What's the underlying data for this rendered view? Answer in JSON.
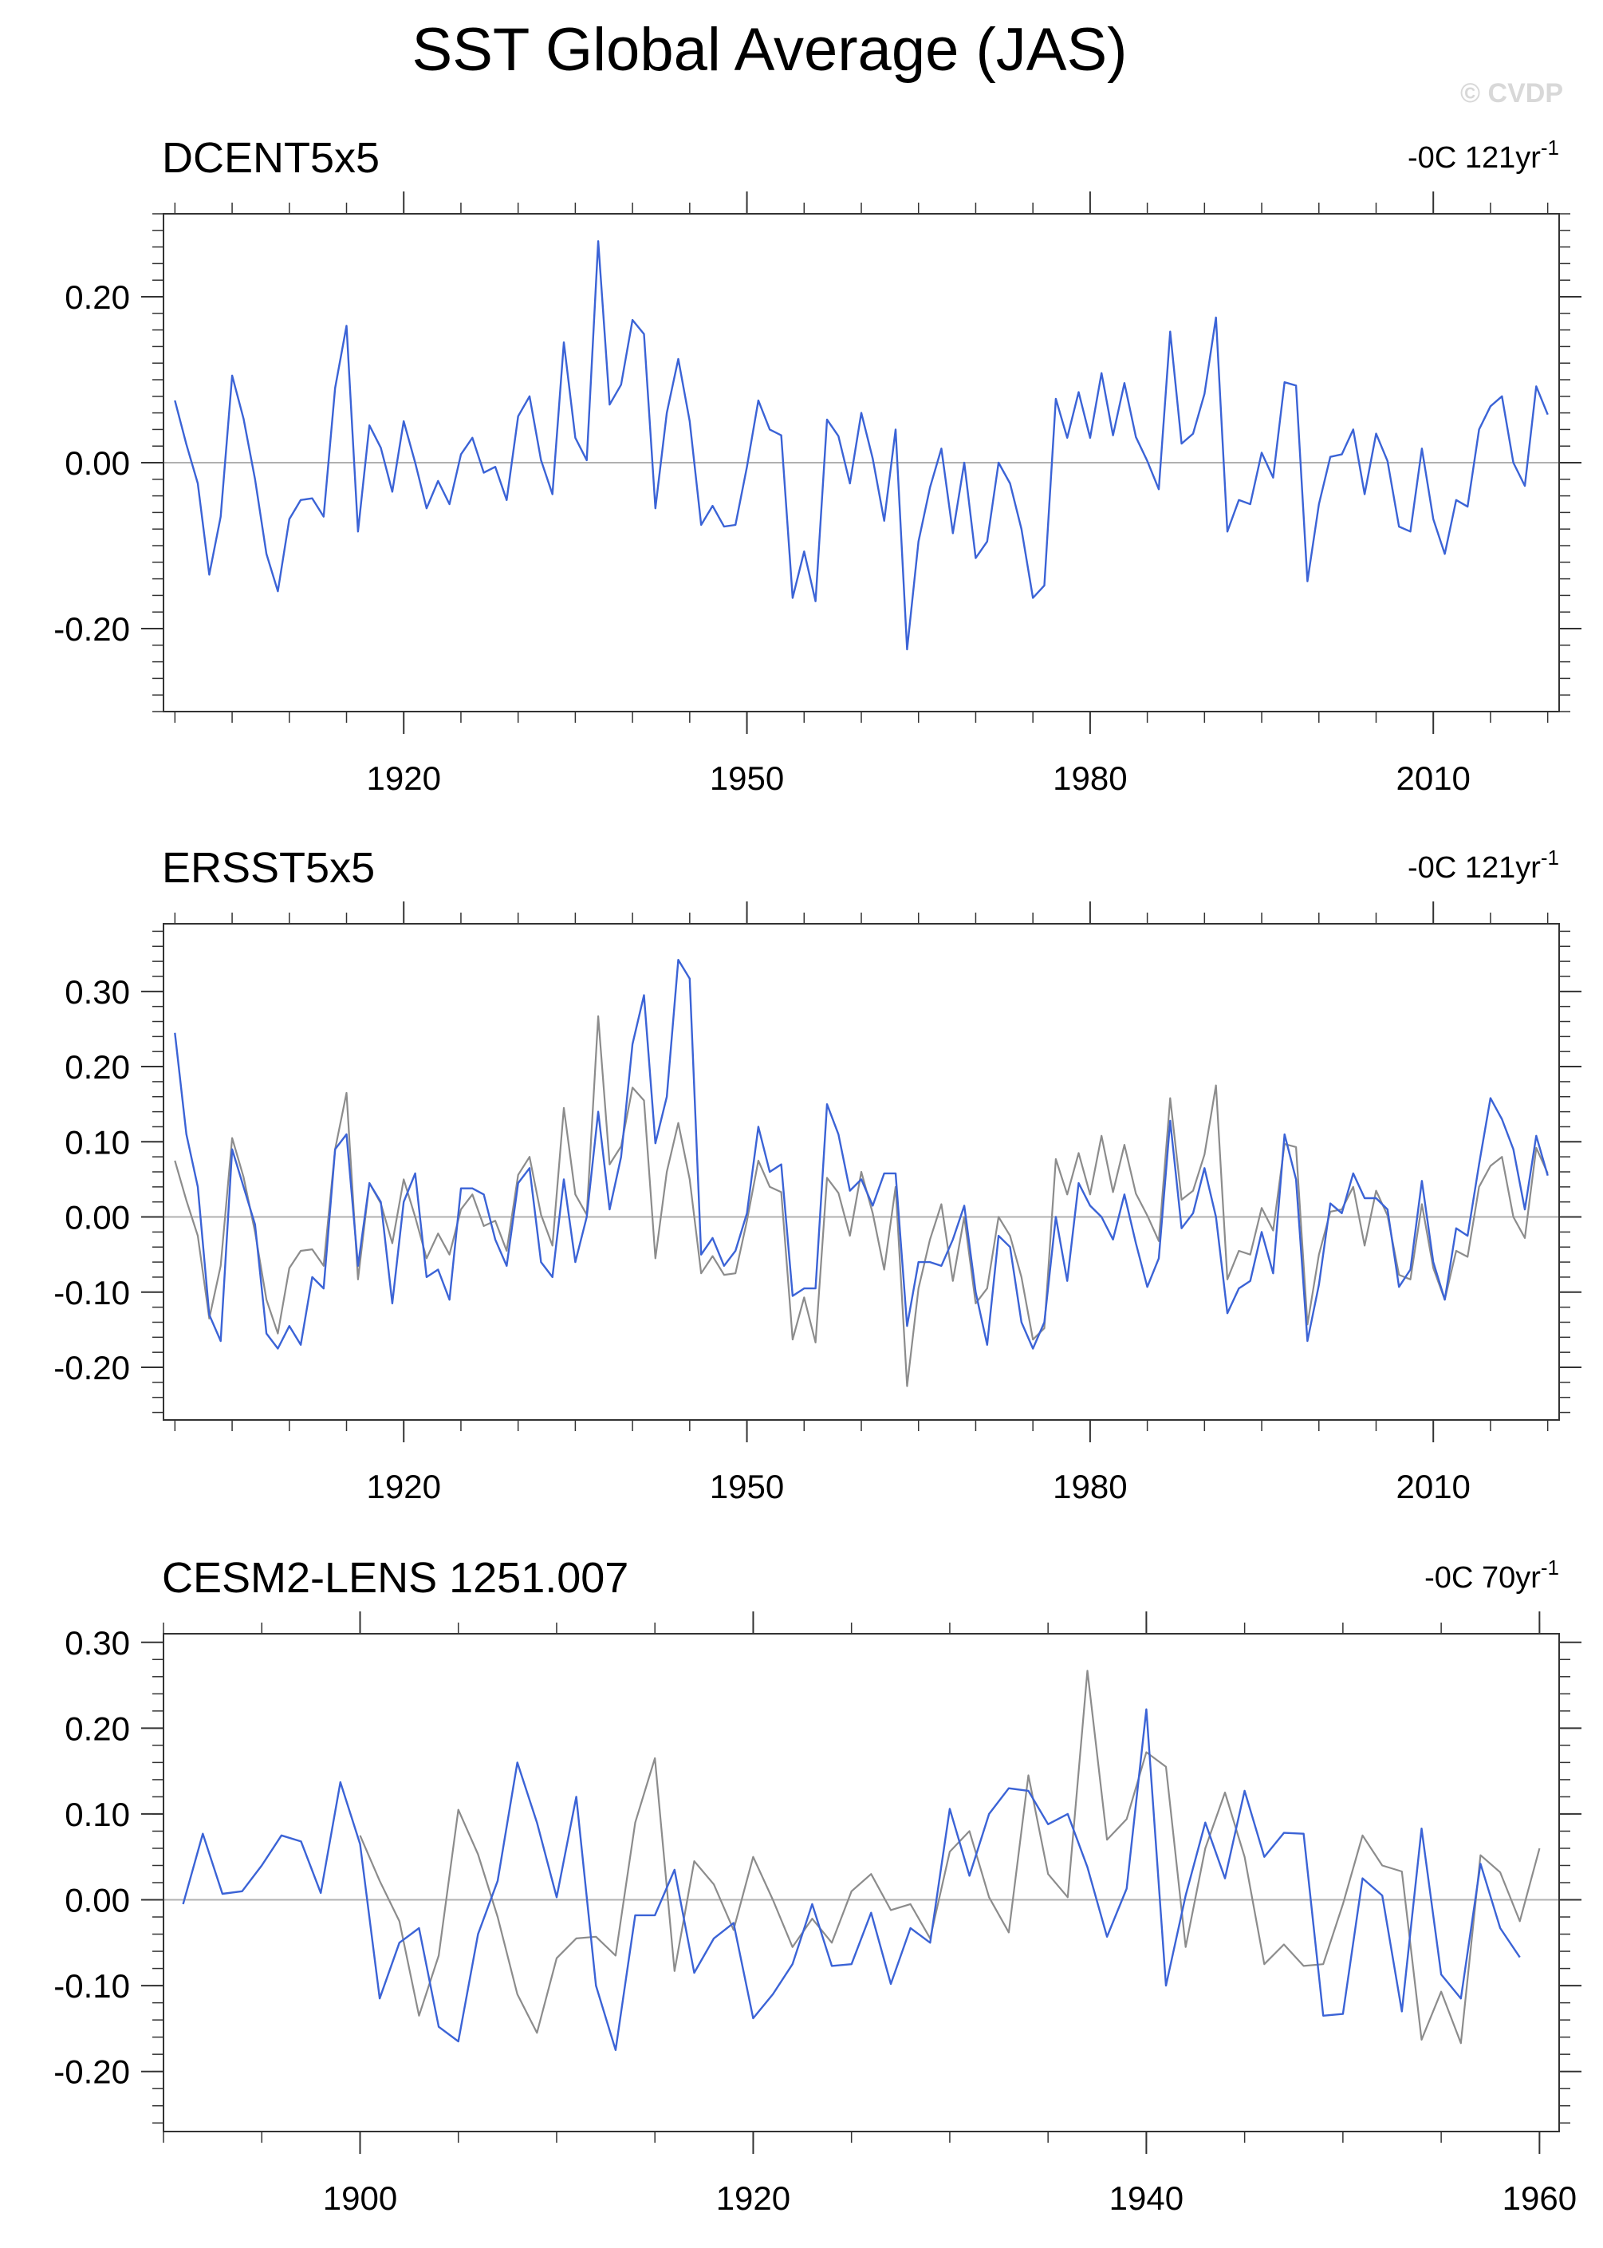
{
  "title": "SST Global Average (JAS)",
  "watermark": "© CVDP",
  "colors": {
    "primary_line": "#3b63d6",
    "reference_line": "#8c8c8c",
    "zero_line": "#b0b0b0",
    "axis": "#333333"
  },
  "chart_data": [
    {
      "type": "line",
      "title": "DCENT5x5",
      "trend_label": "-0C 121yr",
      "trend_superscript": "-1",
      "xlim": [
        1899,
        2021
      ],
      "ylim": [
        -0.3,
        0.3
      ],
      "yticks": [
        -0.2,
        0.0,
        0.2
      ],
      "ytick_labels": [
        "-0.20",
        "0.00",
        "0.20"
      ],
      "xticks": [
        1920,
        1950,
        1980,
        2010
      ],
      "xtick_labels": [
        "1920",
        "1950",
        "1980",
        "2010"
      ],
      "x_start": 1900,
      "series": [
        {
          "role": "primary",
          "values": [
            0.075,
            0.022,
            -0.025,
            -0.135,
            -0.065,
            0.105,
            0.053,
            -0.02,
            -0.11,
            -0.155,
            -0.068,
            -0.045,
            -0.043,
            -0.065,
            0.09,
            0.165,
            -0.083,
            0.045,
            0.018,
            -0.035,
            0.05,
            0.0,
            -0.055,
            -0.022,
            -0.05,
            0.01,
            0.03,
            -0.012,
            -0.005,
            -0.045,
            0.056,
            0.08,
            0.003,
            -0.038,
            0.145,
            0.03,
            0.003,
            0.267,
            0.07,
            0.094,
            0.172,
            0.155,
            -0.055,
            0.06,
            0.125,
            0.05,
            -0.075,
            -0.052,
            -0.077,
            -0.075,
            -0.005,
            0.075,
            0.04,
            0.033,
            -0.163,
            -0.107,
            -0.167,
            0.052,
            0.032,
            -0.025,
            0.06,
            0.005,
            -0.07,
            0.04,
            -0.225,
            -0.095,
            -0.03,
            0.017,
            -0.085,
            0.0,
            -0.115,
            -0.095,
            0.0,
            -0.025,
            -0.08,
            -0.163,
            -0.148,
            0.077,
            0.03,
            0.085,
            0.03,
            0.108,
            0.033,
            0.096,
            0.031,
            0.002,
            -0.032,
            0.158,
            0.023,
            0.035,
            0.083,
            0.175,
            -0.083,
            -0.045,
            -0.05,
            0.012,
            -0.018,
            0.097,
            0.093,
            -0.143,
            -0.05,
            0.007,
            0.01,
            0.04,
            -0.038,
            0.035,
            0.002,
            -0.077,
            -0.083,
            0.017,
            -0.068,
            -0.11,
            -0.045,
            -0.053,
            0.04,
            0.068,
            0.08,
            0.0,
            -0.028,
            0.092,
            0.058
          ]
        }
      ]
    },
    {
      "type": "line",
      "title": "ERSST5x5",
      "trend_label": "-0C 121yr",
      "trend_superscript": "-1",
      "xlim": [
        1899,
        2021
      ],
      "ylim": [
        -0.27,
        0.39
      ],
      "yticks": [
        -0.2,
        -0.1,
        0.0,
        0.1,
        0.2,
        0.3
      ],
      "ytick_labels": [
        "-0.20",
        "-0.10",
        "0.00",
        "0.10",
        "0.20",
        "0.30"
      ],
      "xticks": [
        1920,
        1950,
        1980,
        2010
      ],
      "xtick_labels": [
        "1920",
        "1950",
        "1980",
        "2010"
      ],
      "x_start": 1900,
      "series": [
        {
          "role": "reference",
          "values": [
            0.075,
            0.022,
            -0.025,
            -0.135,
            -0.065,
            0.105,
            0.053,
            -0.02,
            -0.11,
            -0.155,
            -0.068,
            -0.045,
            -0.043,
            -0.065,
            0.09,
            0.165,
            -0.083,
            0.045,
            0.018,
            -0.035,
            0.05,
            0.0,
            -0.055,
            -0.022,
            -0.05,
            0.01,
            0.03,
            -0.012,
            -0.005,
            -0.045,
            0.056,
            0.08,
            0.003,
            -0.038,
            0.145,
            0.03,
            0.003,
            0.267,
            0.07,
            0.094,
            0.172,
            0.155,
            -0.055,
            0.06,
            0.125,
            0.05,
            -0.075,
            -0.052,
            -0.077,
            -0.075,
            -0.005,
            0.075,
            0.04,
            0.033,
            -0.163,
            -0.107,
            -0.167,
            0.052,
            0.032,
            -0.025,
            0.06,
            0.005,
            -0.07,
            0.04,
            -0.225,
            -0.095,
            -0.03,
            0.017,
            -0.085,
            0.0,
            -0.115,
            -0.095,
            0.0,
            -0.025,
            -0.08,
            -0.163,
            -0.148,
            0.077,
            0.03,
            0.085,
            0.03,
            0.108,
            0.033,
            0.096,
            0.031,
            0.002,
            -0.032,
            0.158,
            0.023,
            0.035,
            0.083,
            0.175,
            -0.083,
            -0.045,
            -0.05,
            0.012,
            -0.018,
            0.097,
            0.093,
            -0.143,
            -0.05,
            0.007,
            0.01,
            0.04,
            -0.038,
            0.035,
            0.002,
            -0.077,
            -0.083,
            0.017,
            -0.068,
            -0.11,
            -0.045,
            -0.053,
            0.04,
            0.068,
            0.08,
            0.0,
            -0.028,
            0.092,
            0.058
          ]
        },
        {
          "role": "primary",
          "values": [
            0.245,
            0.11,
            0.04,
            -0.13,
            -0.165,
            0.09,
            0.04,
            -0.01,
            -0.155,
            -0.175,
            -0.145,
            -0.17,
            -0.08,
            -0.095,
            0.09,
            0.11,
            -0.065,
            0.045,
            0.02,
            -0.115,
            0.02,
            0.058,
            -0.08,
            -0.07,
            -0.11,
            0.038,
            0.038,
            0.03,
            -0.03,
            -0.065,
            0.045,
            0.065,
            -0.06,
            -0.08,
            0.05,
            -0.06,
            0.0,
            0.14,
            0.01,
            0.08,
            0.23,
            0.295,
            0.098,
            0.16,
            0.342,
            0.317,
            -0.05,
            -0.028,
            -0.065,
            -0.045,
            0.005,
            0.12,
            0.06,
            0.07,
            -0.105,
            -0.095,
            -0.095,
            0.15,
            0.11,
            0.035,
            0.05,
            0.015,
            0.058,
            0.058,
            -0.145,
            -0.06,
            -0.06,
            -0.065,
            -0.03,
            0.015,
            -0.1,
            -0.17,
            -0.025,
            -0.04,
            -0.14,
            -0.175,
            -0.14,
            0.0,
            -0.085,
            0.045,
            0.015,
            0.0,
            -0.03,
            0.03,
            -0.035,
            -0.093,
            -0.055,
            0.128,
            -0.015,
            0.005,
            0.065,
            0.0,
            -0.128,
            -0.095,
            -0.085,
            -0.02,
            -0.075,
            0.11,
            0.05,
            -0.165,
            -0.09,
            0.018,
            0.005,
            0.058,
            0.025,
            0.025,
            0.01,
            -0.093,
            -0.07,
            0.048,
            -0.06,
            -0.11,
            -0.015,
            -0.025,
            0.07,
            0.158,
            0.13,
            0.09,
            0.01,
            0.108,
            0.055
          ]
        }
      ]
    },
    {
      "type": "line",
      "title": "CESM2-LENS 1251.007",
      "trend_label": "-0C 70yr",
      "trend_superscript": "-1",
      "xlim": [
        1890,
        1961
      ],
      "ylim": [
        -0.27,
        0.31
      ],
      "yticks": [
        -0.2,
        -0.1,
        0.0,
        0.1,
        0.2,
        0.3
      ],
      "ytick_labels": [
        "-0.20",
        "-0.10",
        "0.00",
        "0.10",
        "0.20",
        "0.30"
      ],
      "xticks": [
        1900,
        1920,
        1940,
        1960
      ],
      "xtick_labels": [
        "1900",
        "1920",
        "1940",
        "1960"
      ],
      "series": [
        {
          "role": "reference",
          "x_start": 1900,
          "values": [
            0.075,
            0.022,
            -0.025,
            -0.135,
            -0.065,
            0.105,
            0.053,
            -0.02,
            -0.11,
            -0.155,
            -0.068,
            -0.045,
            -0.043,
            -0.065,
            0.09,
            0.165,
            -0.083,
            0.045,
            0.018,
            -0.035,
            0.05,
            0.0,
            -0.055,
            -0.022,
            -0.05,
            0.01,
            0.03,
            -0.012,
            -0.005,
            -0.045,
            0.056,
            0.08,
            0.003,
            -0.038,
            0.145,
            0.03,
            0.003,
            0.267,
            0.07,
            0.094,
            0.172,
            0.155,
            -0.055,
            0.06,
            0.125,
            0.05,
            -0.075,
            -0.052,
            -0.077,
            -0.075,
            -0.005,
            0.075,
            0.04,
            0.033,
            -0.163,
            -0.107,
            -0.167,
            0.052,
            0.032,
            -0.025,
            0.06
          ]
        },
        {
          "role": "primary",
          "x_start": 1891,
          "values": [
            -0.005,
            0.077,
            0.007,
            0.01,
            0.04,
            0.075,
            0.068,
            0.008,
            0.137,
            0.065,
            -0.115,
            -0.05,
            -0.033,
            -0.148,
            -0.165,
            -0.04,
            0.022,
            0.16,
            0.09,
            0.003,
            0.12,
            -0.1,
            -0.175,
            -0.018,
            -0.018,
            0.035,
            -0.085,
            -0.045,
            -0.027,
            -0.138,
            -0.11,
            -0.075,
            -0.005,
            -0.077,
            -0.075,
            -0.015,
            -0.098,
            -0.033,
            -0.05,
            0.106,
            0.028,
            0.1,
            0.13,
            0.127,
            0.088,
            0.1,
            0.038,
            -0.043,
            0.013,
            0.222,
            -0.1,
            0.005,
            0.09,
            0.025,
            0.127,
            0.05,
            0.078,
            0.077,
            -0.135,
            -0.133,
            0.025,
            0.005,
            -0.13,
            0.083,
            -0.087,
            -0.115,
            0.042,
            -0.033,
            -0.067
          ]
        }
      ]
    }
  ]
}
